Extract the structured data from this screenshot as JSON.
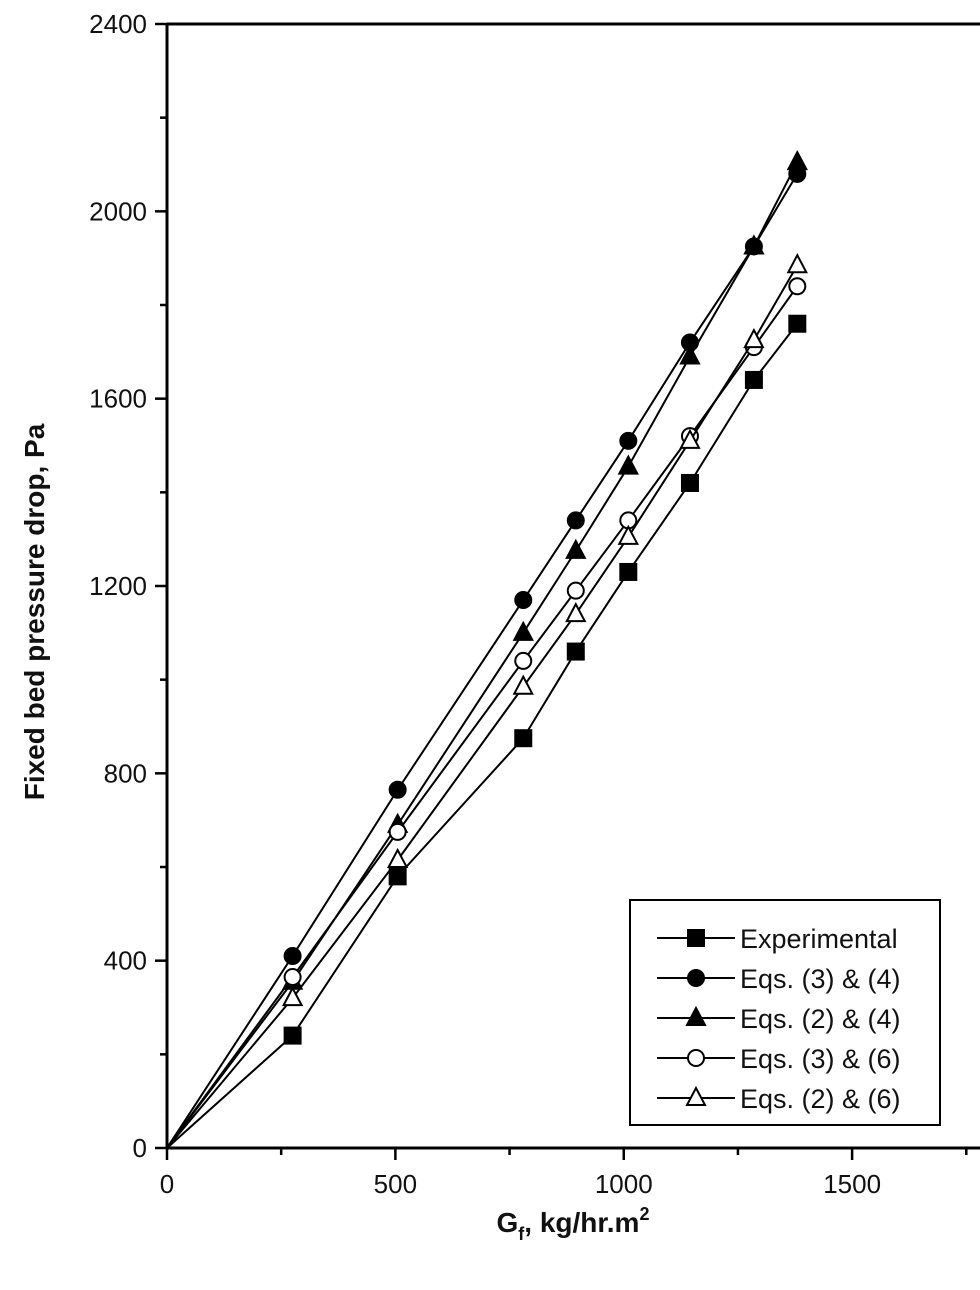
{
  "chart_data": {
    "type": "line",
    "title": "",
    "xlabel": {
      "main": "G",
      "sub": "f",
      "rest": ", kg/hr.m",
      "sup": "2"
    },
    "ylabel": "Fixed bed pressure drop, Pa",
    "xlim": [
      0,
      1780
    ],
    "ylim": [
      0,
      2400
    ],
    "xticks": [
      0,
      500,
      1000,
      1500
    ],
    "xtick_labels": [
      "0",
      "500",
      "1000",
      "1500"
    ],
    "yticks": [
      0,
      400,
      800,
      1200,
      1600,
      2000,
      2400
    ],
    "ytick_labels": [
      "0",
      "400",
      "800",
      "1200",
      "1600",
      "2000",
      "2400"
    ],
    "grid": false,
    "legend_position": "bottom-right",
    "series": [
      {
        "name": "Experimental",
        "marker": "square-filled",
        "x": [
          0,
          275,
          505,
          780,
          895,
          1010,
          1145,
          1285,
          1380
        ],
        "y": [
          0,
          240,
          580,
          875,
          1060,
          1230,
          1420,
          1640,
          1760
        ]
      },
      {
        "name": "Eqs. (3) & (4)",
        "marker": "circle-filled",
        "x": [
          0,
          275,
          505,
          780,
          895,
          1010,
          1145,
          1285,
          1380
        ],
        "y": [
          0,
          410,
          765,
          1170,
          1340,
          1510,
          1720,
          1925,
          2080
        ]
      },
      {
        "name": "Eqs. (2) & (4)",
        "marker": "triangle-filled",
        "x": [
          0,
          275,
          505,
          780,
          895,
          1010,
          1145,
          1285,
          1380
        ],
        "y": [
          0,
          355,
          690,
          1100,
          1275,
          1455,
          1690,
          1925,
          2105
        ]
      },
      {
        "name": "Eqs. (3) & (6)",
        "marker": "circle-open",
        "x": [
          0,
          275,
          505,
          780,
          895,
          1010,
          1145,
          1285,
          1380
        ],
        "y": [
          0,
          365,
          675,
          1040,
          1190,
          1340,
          1520,
          1710,
          1840
        ]
      },
      {
        "name": "Eqs. (2) & (6)",
        "marker": "triangle-open",
        "x": [
          0,
          275,
          505,
          780,
          895,
          1010,
          1145,
          1285,
          1380
        ],
        "y": [
          0,
          320,
          615,
          985,
          1140,
          1305,
          1510,
          1725,
          1885
        ]
      }
    ]
  }
}
